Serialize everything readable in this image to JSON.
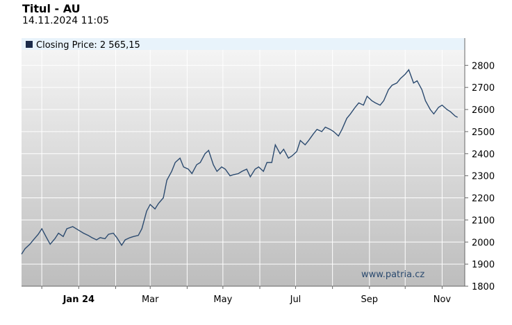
{
  "title": "Titul - AU",
  "timestamp": "14.11.2024 11:05",
  "legend": {
    "label": "Closing Price: 2 565,15"
  },
  "watermark": "www.patria.cz",
  "colors": {
    "line": "#2b4a6f",
    "legend_band": "#e8f3fb",
    "plot_top": "#f4f4f4",
    "plot_bottom": "#bdbdbd"
  },
  "chart_data": {
    "type": "line",
    "title": "Titul - AU",
    "series": [
      {
        "name": "Closing Price",
        "x": [
          "2023-11-14",
          "2023-11-17",
          "2023-11-21",
          "2023-11-24",
          "2023-11-28",
          "2023-12-01",
          "2023-12-05",
          "2023-12-08",
          "2023-12-12",
          "2023-12-15",
          "2023-12-19",
          "2023-12-22",
          "2023-12-27",
          "2024-01-02",
          "2024-01-05",
          "2024-01-09",
          "2024-01-12",
          "2024-01-16",
          "2024-01-19",
          "2024-01-23",
          "2024-01-26",
          "2024-01-30",
          "2024-02-02",
          "2024-02-06",
          "2024-02-09",
          "2024-02-13",
          "2024-02-16",
          "2024-02-20",
          "2024-02-23",
          "2024-02-27",
          "2024-03-01",
          "2024-03-05",
          "2024-03-08",
          "2024-03-12",
          "2024-03-15",
          "2024-03-19",
          "2024-03-22",
          "2024-03-26",
          "2024-03-29",
          "2024-04-02",
          "2024-04-05",
          "2024-04-09",
          "2024-04-12",
          "2024-04-16",
          "2024-04-19",
          "2024-04-23",
          "2024-04-26",
          "2024-04-30",
          "2024-05-03",
          "2024-05-07",
          "2024-05-10",
          "2024-05-14",
          "2024-05-17",
          "2024-05-21",
          "2024-05-24",
          "2024-05-28",
          "2024-05-31",
          "2024-06-04",
          "2024-06-07",
          "2024-06-11",
          "2024-06-14",
          "2024-06-18",
          "2024-06-21",
          "2024-06-25",
          "2024-06-28",
          "2024-07-02",
          "2024-07-05",
          "2024-07-09",
          "2024-07-12",
          "2024-07-16",
          "2024-07-19",
          "2024-07-23",
          "2024-07-26",
          "2024-07-30",
          "2024-08-02",
          "2024-08-06",
          "2024-08-09",
          "2024-08-13",
          "2024-08-16",
          "2024-08-20",
          "2024-08-23",
          "2024-08-27",
          "2024-08-30",
          "2024-09-03",
          "2024-09-06",
          "2024-09-10",
          "2024-09-13",
          "2024-09-17",
          "2024-09-20",
          "2024-09-24",
          "2024-09-27",
          "2024-10-01",
          "2024-10-04",
          "2024-10-08",
          "2024-10-11",
          "2024-10-15",
          "2024-10-18",
          "2024-10-22",
          "2024-10-25",
          "2024-10-29",
          "2024-11-01",
          "2024-11-05",
          "2024-11-08",
          "2024-11-12",
          "2024-11-14"
        ],
        "values": [
          1945,
          1970,
          1990,
          2010,
          2035,
          2060,
          2020,
          1990,
          2015,
          2040,
          2025,
          2060,
          2070,
          2050,
          2040,
          2030,
          2020,
          2010,
          2020,
          2015,
          2035,
          2040,
          2020,
          1985,
          2010,
          2020,
          2025,
          2030,
          2060,
          2140,
          2170,
          2150,
          2175,
          2200,
          2280,
          2320,
          2360,
          2380,
          2340,
          2330,
          2310,
          2350,
          2360,
          2400,
          2415,
          2350,
          2320,
          2340,
          2330,
          2300,
          2305,
          2310,
          2320,
          2330,
          2295,
          2330,
          2340,
          2320,
          2360,
          2360,
          2440,
          2400,
          2420,
          2380,
          2390,
          2410,
          2460,
          2440,
          2460,
          2490,
          2510,
          2500,
          2520,
          2510,
          2500,
          2480,
          2510,
          2560,
          2580,
          2610,
          2630,
          2620,
          2660,
          2640,
          2630,
          2620,
          2640,
          2690,
          2710,
          2720,
          2740,
          2760,
          2780,
          2720,
          2730,
          2690,
          2640,
          2600,
          2580,
          2610,
          2620,
          2600,
          2590,
          2570,
          2565
        ]
      }
    ],
    "x_tick_labels": [
      "Jan 24",
      "Mar",
      "May",
      "Jul",
      "Sep",
      "Nov"
    ],
    "y_ticks": [
      1800,
      1900,
      2000,
      2100,
      2200,
      2300,
      2400,
      2500,
      2600,
      2700,
      2800
    ],
    "ylim": [
      1800,
      2870
    ],
    "xlim": [
      "2023-11-14",
      "2024-11-20"
    ],
    "grid": true,
    "legend": "top-left"
  }
}
